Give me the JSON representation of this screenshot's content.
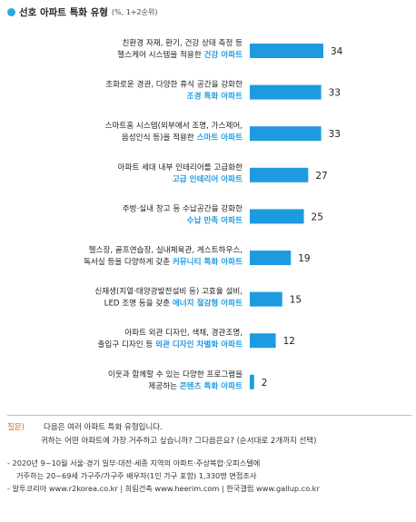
{
  "header": {
    "title": "선호 아파트 특화 유형",
    "unit_note": "(%, 1+2순위)"
  },
  "chart_data": {
    "type": "bar",
    "orientation": "horizontal",
    "title": "선호 아파트 특화 유형",
    "subtitle": "(%, 1+2순위)",
    "bar_color": "#1e9be0",
    "highlight_color": "#1e9be0",
    "categories": [
      {
        "lines": [
          "친환경 자재, 환기, 건강 상태 측정 등"
        ],
        "lead": "헬스케어 시스템을 적용한",
        "hl": "건강 아파트"
      },
      {
        "lines": [
          "조화로운 경관, 다양한 휴식 공간을 강화한"
        ],
        "lead": "",
        "hl": "조경 특화 아파트"
      },
      {
        "lines": [
          "스마트홈 시스템(외부에서 조명, 가스제어,"
        ],
        "lead": "음성인식 등)을 적용한",
        "hl": "스마트 아파트"
      },
      {
        "lines": [
          "아파트 세대 내부 인테리어를 고급화한"
        ],
        "lead": "",
        "hl": "고급 인테리어 아파트"
      },
      {
        "lines": [
          "주방·실내 창고 등 수납공간을 강화한"
        ],
        "lead": "",
        "hl": "수납 만족 아파트"
      },
      {
        "lines": [
          "헬스장, 골프연습장, 실내체육관, 게스트하우스,"
        ],
        "lead": "독서실 등을 다양하게 갖춘",
        "hl": "커뮤니티 특화 아파트"
      },
      {
        "lines": [
          "신재생(지열·태양광발전설비 등) 고효율 설비,"
        ],
        "lead": "LED 조명 등을 갖춘",
        "hl": "에너지 절감형 아파트"
      },
      {
        "lines": [
          "아파트 외관 디자인, 색채, 경관조명,"
        ],
        "lead": "출입구 디자인 등",
        "hl": "외관 디자인 차별화 아파트"
      },
      {
        "lines": [
          "이웃과 함께할 수 있는 다양한 프로그램을"
        ],
        "lead": "제공하는",
        "hl": "콘텐츠 특화 아파트"
      }
    ],
    "values": [
      34,
      33,
      33,
      27,
      25,
      19,
      15,
      12,
      2
    ],
    "xlim": [
      0,
      34
    ],
    "grid": false,
    "legend": "none"
  },
  "footer": {
    "question_label": "질문)",
    "question_line1": "다음은 여러 아파트 특화 유형입니다.",
    "question_line2": "귀하는 어떤 아파트에 가장 거주하고 싶습니까? 그다음은요? (순서대로 2개까지 선택)",
    "note1": "- 2020년 9~10월 서울·경기 일부·대전·세종 지역의 아파트·주상복합·오피스텔에",
    "note2": "거주하는 20~69세 가구주/가구주 배우자(1인 가구 포함) 1,330명 면접조사",
    "note3": "- 알투코리아 www.r2korea.co.kr | 희림건축 www.heerim.com | 한국갤럽 www.gallup.co.kr"
  }
}
